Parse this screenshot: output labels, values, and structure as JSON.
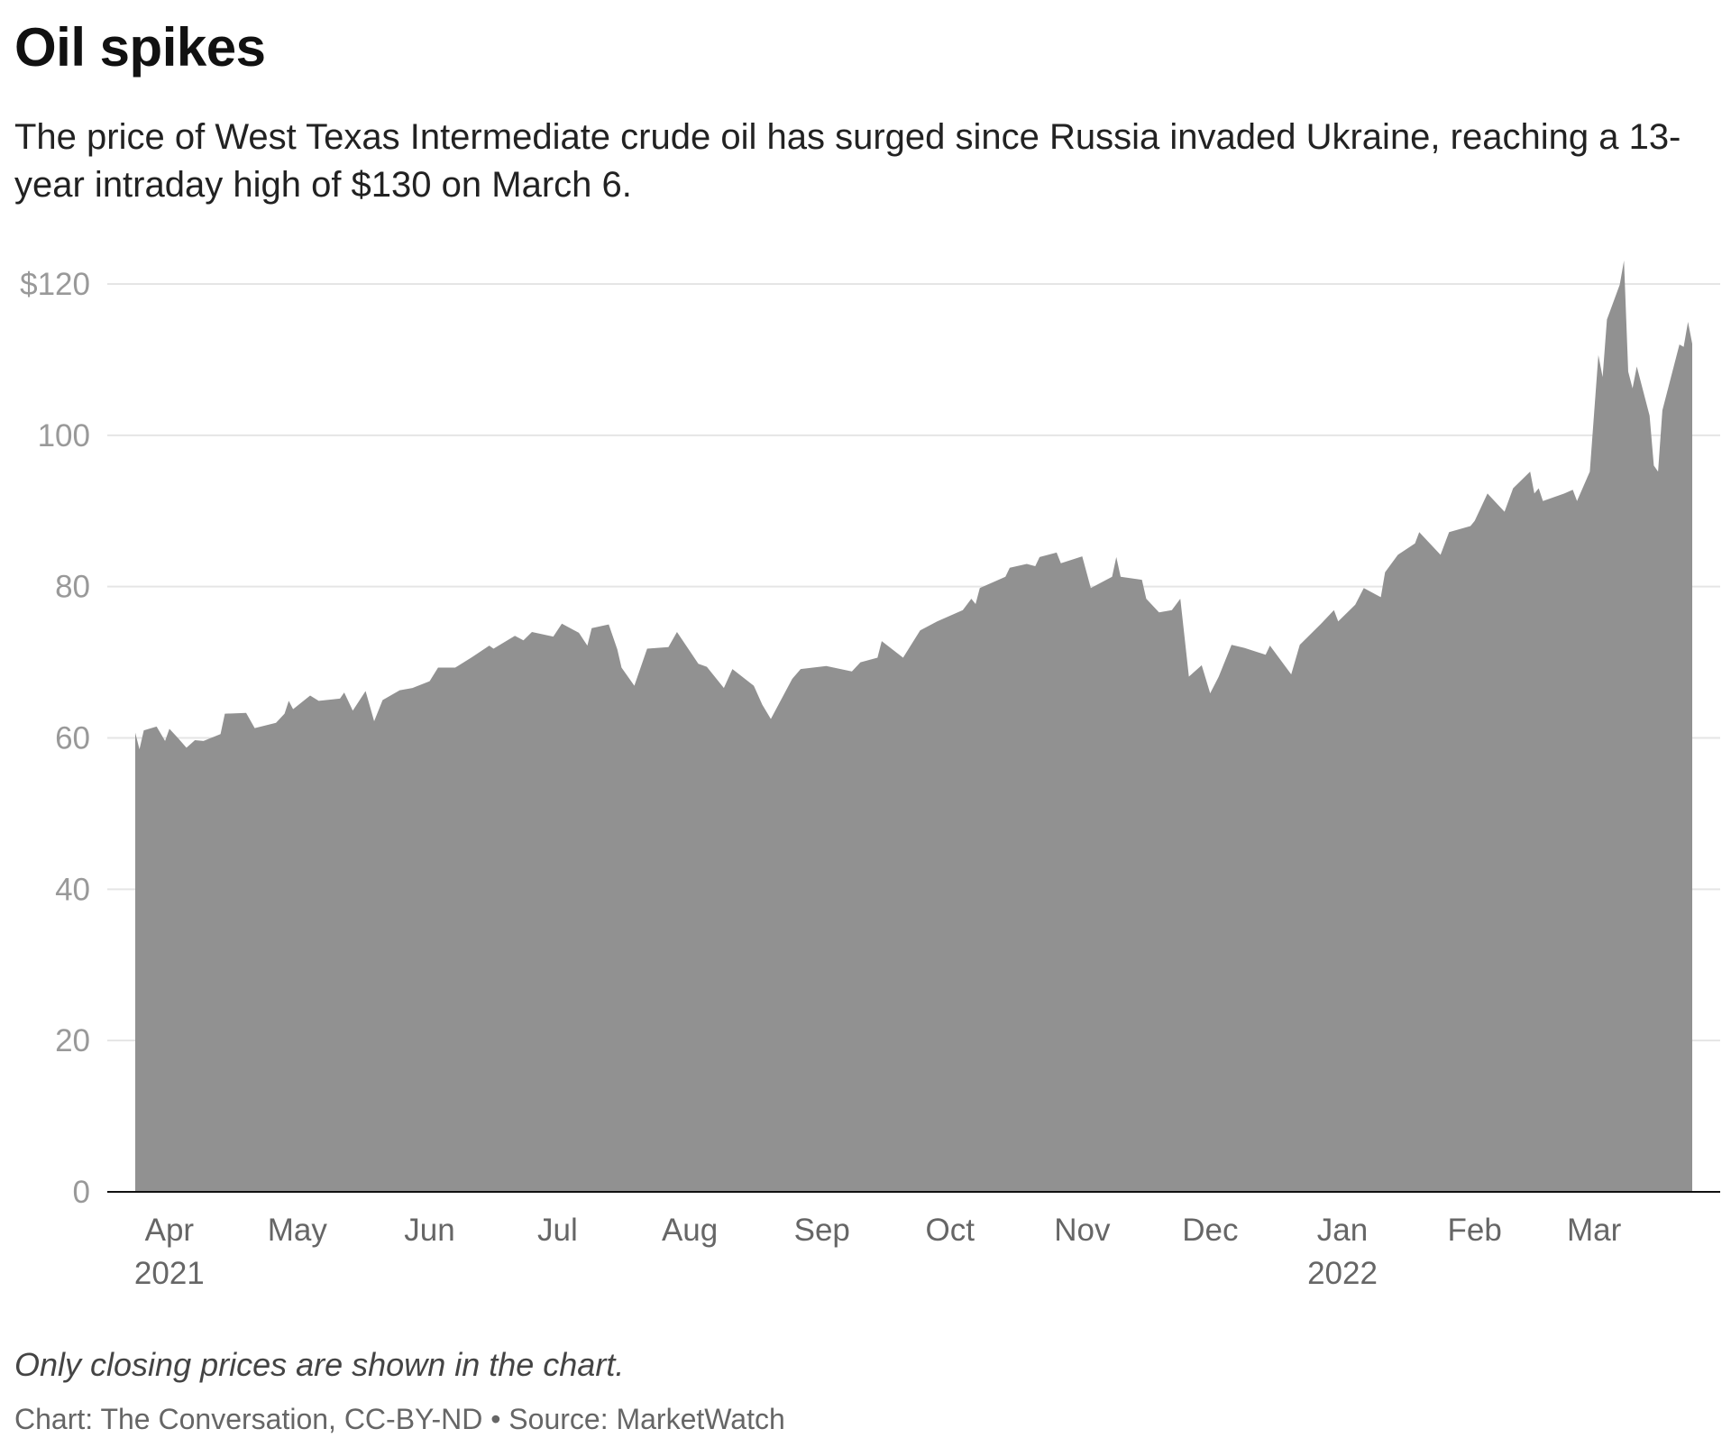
{
  "header": {
    "title": "Oil spikes",
    "subtitle": "The price of West Texas Intermediate crude oil has surged since Russia invaded Ukraine, reaching a 13-year intraday high of $130 on March 6."
  },
  "footer": {
    "note": "Only closing prices are shown in the chart.",
    "source": "Chart: The Conversation, CC-BY-ND • Source: MarketWatch"
  },
  "chart_data": {
    "type": "area",
    "title": "Oil spikes",
    "xlabel": "",
    "ylabel": "",
    "xlim": [
      "2021-03-24",
      "2022-03-24"
    ],
    "ylim": [
      0,
      120
    ],
    "grid": true,
    "fill_color": "#8f8f8f",
    "grid_color": "#e5e5e5",
    "y_ticks": [
      {
        "value": 0,
        "label": "0"
      },
      {
        "value": 20,
        "label": "20"
      },
      {
        "value": 40,
        "label": "40"
      },
      {
        "value": 60,
        "label": "60"
      },
      {
        "value": 80,
        "label": "80"
      },
      {
        "value": 100,
        "label": "100"
      },
      {
        "value": 120,
        "label": "$120"
      }
    ],
    "x_ticks": [
      {
        "date": "2021-04-01",
        "label": "Apr",
        "year": "2021"
      },
      {
        "date": "2021-05-01",
        "label": "May"
      },
      {
        "date": "2021-06-01",
        "label": "Jun"
      },
      {
        "date": "2021-07-01",
        "label": "Jul"
      },
      {
        "date": "2021-08-01",
        "label": "Aug"
      },
      {
        "date": "2021-09-01",
        "label": "Sep"
      },
      {
        "date": "2021-10-01",
        "label": "Oct"
      },
      {
        "date": "2021-11-01",
        "label": "Nov"
      },
      {
        "date": "2021-12-01",
        "label": "Dec"
      },
      {
        "date": "2022-01-01",
        "label": "Jan",
        "year": "2022"
      },
      {
        "date": "2022-02-01",
        "label": "Feb"
      },
      {
        "date": "2022-03-01",
        "label": "Mar"
      }
    ],
    "series": [
      {
        "x": [
          "2021-03-24",
          "2021-03-25",
          "2021-03-26",
          "2021-03-29",
          "2021-03-31",
          "2021-04-01",
          "2021-04-03",
          "2021-04-05",
          "2021-04-07",
          "2021-04-09",
          "2021-04-13",
          "2021-04-14",
          "2021-04-19",
          "2021-04-21",
          "2021-04-26",
          "2021-04-28",
          "2021-04-29",
          "2021-04-30",
          "2021-05-04",
          "2021-05-06",
          "2021-05-11",
          "2021-05-12",
          "2021-05-14",
          "2021-05-17",
          "2021-05-19",
          "2021-05-21",
          "2021-05-25",
          "2021-05-28",
          "2021-06-01",
          "2021-06-03",
          "2021-06-07",
          "2021-06-11",
          "2021-06-15",
          "2021-06-16",
          "2021-06-21",
          "2021-06-23",
          "2021-06-25",
          "2021-06-30",
          "2021-07-02",
          "2021-07-06",
          "2021-07-08",
          "2021-07-09",
          "2021-07-13",
          "2021-07-15",
          "2021-07-16",
          "2021-07-19",
          "2021-07-22",
          "2021-07-27",
          "2021-07-29",
          "2021-08-03",
          "2021-08-05",
          "2021-08-09",
          "2021-08-11",
          "2021-08-16",
          "2021-08-18",
          "2021-08-20",
          "2021-08-25",
          "2021-08-27",
          "2021-09-02",
          "2021-09-08",
          "2021-09-10",
          "2021-09-14",
          "2021-09-15",
          "2021-09-20",
          "2021-09-24",
          "2021-09-28",
          "2021-10-04",
          "2021-10-06",
          "2021-10-07",
          "2021-10-08",
          "2021-10-14",
          "2021-10-15",
          "2021-10-19",
          "2021-10-21",
          "2021-10-22",
          "2021-10-26",
          "2021-10-27",
          "2021-11-01",
          "2021-11-03",
          "2021-11-08",
          "2021-11-09",
          "2021-11-10",
          "2021-11-15",
          "2021-11-16",
          "2021-11-19",
          "2021-11-22",
          "2021-11-24",
          "2021-11-26",
          "2021-11-29",
          "2021-12-01",
          "2021-12-03",
          "2021-12-06",
          "2021-12-09",
          "2021-12-14",
          "2021-12-15",
          "2021-12-20",
          "2021-12-22",
          "2021-12-27",
          "2021-12-30",
          "2021-12-31",
          "2022-01-04",
          "2022-01-06",
          "2022-01-10",
          "2022-01-11",
          "2022-01-14",
          "2022-01-18",
          "2022-01-19",
          "2022-01-24",
          "2022-01-26",
          "2022-01-31",
          "2022-02-01",
          "2022-02-04",
          "2022-02-08",
          "2022-02-10",
          "2022-02-14",
          "2022-02-15",
          "2022-02-16",
          "2022-02-17",
          "2022-02-22",
          "2022-02-24",
          "2022-02-25",
          "2022-02-28",
          "2022-03-02",
          "2022-03-03",
          "2022-03-04",
          "2022-03-07",
          "2022-03-08",
          "2022-03-09",
          "2022-03-10",
          "2022-03-11",
          "2022-03-14",
          "2022-03-15",
          "2022-03-16",
          "2022-03-17",
          "2022-03-21",
          "2022-03-22",
          "2022-03-23",
          "2022-03-24"
        ],
        "values": [
          60.7,
          58.5,
          61.0,
          61.5,
          59.6,
          61.2,
          60.0,
          58.7,
          59.7,
          59.6,
          60.5,
          63.2,
          63.3,
          61.3,
          62.0,
          63.2,
          64.9,
          63.8,
          65.6,
          64.9,
          65.2,
          66.0,
          63.6,
          66.2,
          62.2,
          65.0,
          66.3,
          66.6,
          67.5,
          69.3,
          69.3,
          70.7,
          72.2,
          71.8,
          73.5,
          72.9,
          74.0,
          73.4,
          75.1,
          73.9,
          72.2,
          74.5,
          75.0,
          71.7,
          69.3,
          66.9,
          71.8,
          72.0,
          74.0,
          69.8,
          69.4,
          66.6,
          69.1,
          66.9,
          64.4,
          62.5,
          67.8,
          69.1,
          69.5,
          68.8,
          70.0,
          70.6,
          72.8,
          70.6,
          74.2,
          75.4,
          76.9,
          78.4,
          77.7,
          79.8,
          81.3,
          82.5,
          83.0,
          82.7,
          83.9,
          84.5,
          83.1,
          84.0,
          79.8,
          81.3,
          83.9,
          81.3,
          80.9,
          78.4,
          76.6,
          76.9,
          78.4,
          68.1,
          69.6,
          65.9,
          68.1,
          72.3,
          71.9,
          71.0,
          72.2,
          68.4,
          72.3,
          75.1,
          76.9,
          75.4,
          77.6,
          79.8,
          78.6,
          81.9,
          84.2,
          85.7,
          87.2,
          84.2,
          87.2,
          88.0,
          88.7,
          92.3,
          89.9,
          93.0,
          95.2,
          92.3,
          93.0,
          91.3,
          92.3,
          92.8,
          91.3,
          95.2,
          110.6,
          107.7,
          115.3,
          119.9,
          123.1,
          108.4,
          106.2,
          109.1,
          102.6,
          96.0,
          95.2,
          103.3,
          112.0,
          111.7,
          115.0,
          112.1
        ]
      }
    ]
  }
}
